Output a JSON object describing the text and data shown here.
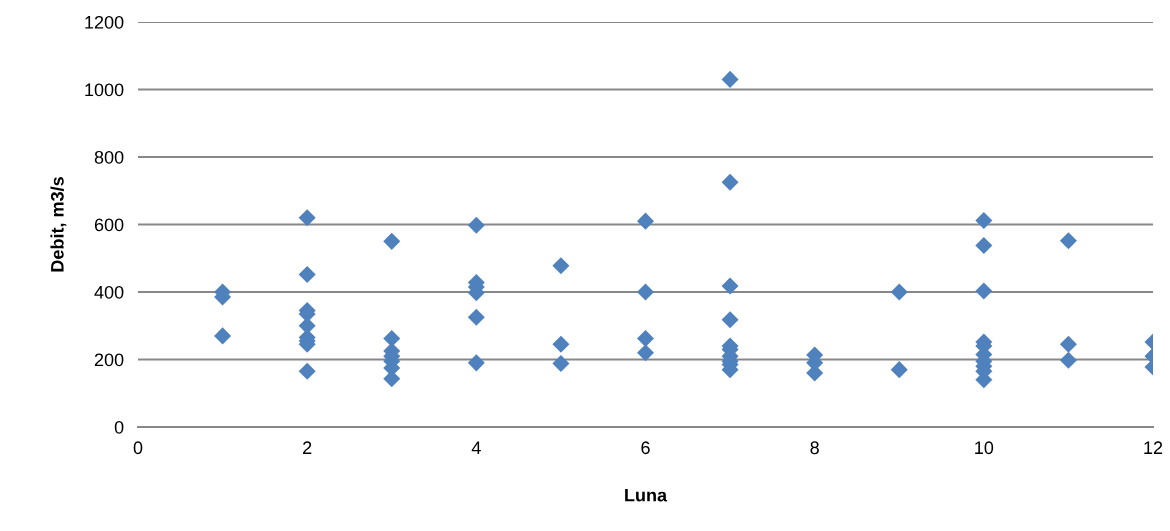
{
  "chart_data": {
    "type": "scatter",
    "xlabel": "Luna",
    "ylabel": "Debit, m3/s",
    "marker": "diamond",
    "grid": "y",
    "xlim": [
      0,
      12
    ],
    "xticks": [
      0,
      2,
      4,
      6,
      8,
      10,
      12
    ],
    "ylim": [
      0,
      1200
    ],
    "yticks": [
      0,
      200,
      400,
      600,
      800,
      1000,
      1200
    ],
    "series": [
      {
        "color": "#4f81bd",
        "x": [
          1,
          1,
          1,
          2,
          2,
          2,
          2,
          2,
          2,
          2,
          2,
          2,
          3,
          3,
          3,
          3,
          3,
          3,
          3,
          4,
          4,
          4,
          4,
          4,
          4,
          5,
          5,
          5,
          6,
          6,
          6,
          6,
          7,
          7,
          7,
          7,
          7,
          7,
          7,
          7,
          7,
          7,
          8,
          8,
          8,
          9,
          9,
          10,
          10,
          10,
          10,
          10,
          10,
          10,
          10,
          10,
          10,
          11,
          11,
          11,
          12,
          12,
          12
        ],
        "values": [
          400,
          385,
          270,
          620,
          452,
          345,
          335,
          300,
          265,
          255,
          245,
          165,
          550,
          262,
          225,
          210,
          195,
          175,
          143,
          598,
          428,
          415,
          398,
          325,
          190,
          478,
          245,
          188,
          610,
          400,
          262,
          220,
          1030,
          725,
          418,
          318,
          240,
          230,
          210,
          195,
          185,
          170,
          213,
          190,
          160,
          400,
          170,
          612,
          538,
          403,
          252,
          240,
          215,
          195,
          180,
          165,
          140,
          552,
          245,
          198,
          252,
          210,
          178
        ]
      }
    ]
  }
}
